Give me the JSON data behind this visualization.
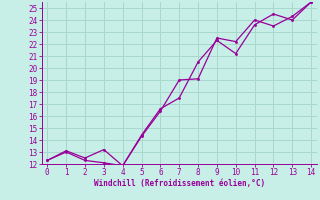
{
  "xlabel": "Windchill (Refroidissement éolien,°C)",
  "bg_color": "#c8eee8",
  "grid_color": "#a8d8cc",
  "line_color": "#990099",
  "x_smooth": [
    0,
    1,
    2,
    3,
    4,
    5,
    6,
    7,
    8,
    9,
    10,
    11,
    12,
    13,
    14
  ],
  "y_smooth": [
    12.3,
    13.1,
    12.5,
    13.2,
    11.85,
    14.4,
    16.6,
    17.5,
    20.5,
    22.3,
    21.2,
    23.6,
    24.5,
    24.0,
    25.5
  ],
  "x_jagged": [
    0,
    1,
    2,
    3,
    4,
    5,
    6,
    7,
    8,
    9,
    10,
    11,
    12,
    13,
    14
  ],
  "y_jagged": [
    12.3,
    13.0,
    12.3,
    12.1,
    11.85,
    14.3,
    16.4,
    19.0,
    19.1,
    22.5,
    22.2,
    24.0,
    23.5,
    24.3,
    25.5
  ],
  "xlim": [
    -0.3,
    14.3
  ],
  "ylim": [
    12,
    25.5
  ],
  "xticks": [
    0,
    1,
    2,
    3,
    4,
    5,
    6,
    7,
    8,
    9,
    10,
    11,
    12,
    13,
    14
  ],
  "yticks": [
    12,
    13,
    14,
    15,
    16,
    17,
    18,
    19,
    20,
    21,
    22,
    23,
    24,
    25
  ]
}
